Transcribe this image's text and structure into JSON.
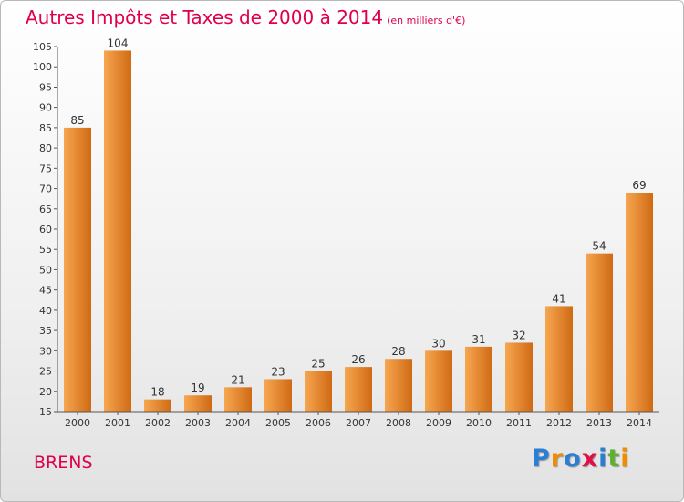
{
  "header": {
    "title": "Autres Impôts et Taxes de 2000 à 2014",
    "subtitle": "(en milliers d'€)"
  },
  "footer": {
    "commune": "BRENS",
    "logo": [
      {
        "ch": "P",
        "color": "#2a7fd4"
      },
      {
        "ch": "r",
        "color": "#f08c00"
      },
      {
        "ch": "o",
        "color": "#2a7fd4"
      },
      {
        "ch": "x",
        "color": "#e0104a"
      },
      {
        "ch": "i",
        "color": "#2a7fd4"
      },
      {
        "ch": "t",
        "color": "#60b030"
      },
      {
        "ch": "i",
        "color": "#f08c00"
      }
    ]
  },
  "chart_data": {
    "type": "bar",
    "title": "Autres Impôts et Taxes de 2000 à 2014",
    "subtitle": "(en milliers d'€)",
    "categories": [
      "2000",
      "2001",
      "2002",
      "2003",
      "2004",
      "2005",
      "2006",
      "2007",
      "2008",
      "2009",
      "2010",
      "2011",
      "2012",
      "2013",
      "2014"
    ],
    "values": [
      85,
      104,
      18,
      19,
      21,
      23,
      25,
      26,
      28,
      30,
      31,
      32,
      41,
      54,
      69
    ],
    "ylim": [
      15,
      105
    ],
    "yticks": [
      15,
      20,
      25,
      30,
      35,
      40,
      45,
      50,
      55,
      60,
      65,
      70,
      75,
      80,
      85,
      90,
      95,
      100,
      105
    ],
    "grid": false,
    "colors": {
      "bar_light": "#f7a650",
      "bar_dark": "#d06a14",
      "text": "#333333",
      "axis": "#555555"
    }
  }
}
